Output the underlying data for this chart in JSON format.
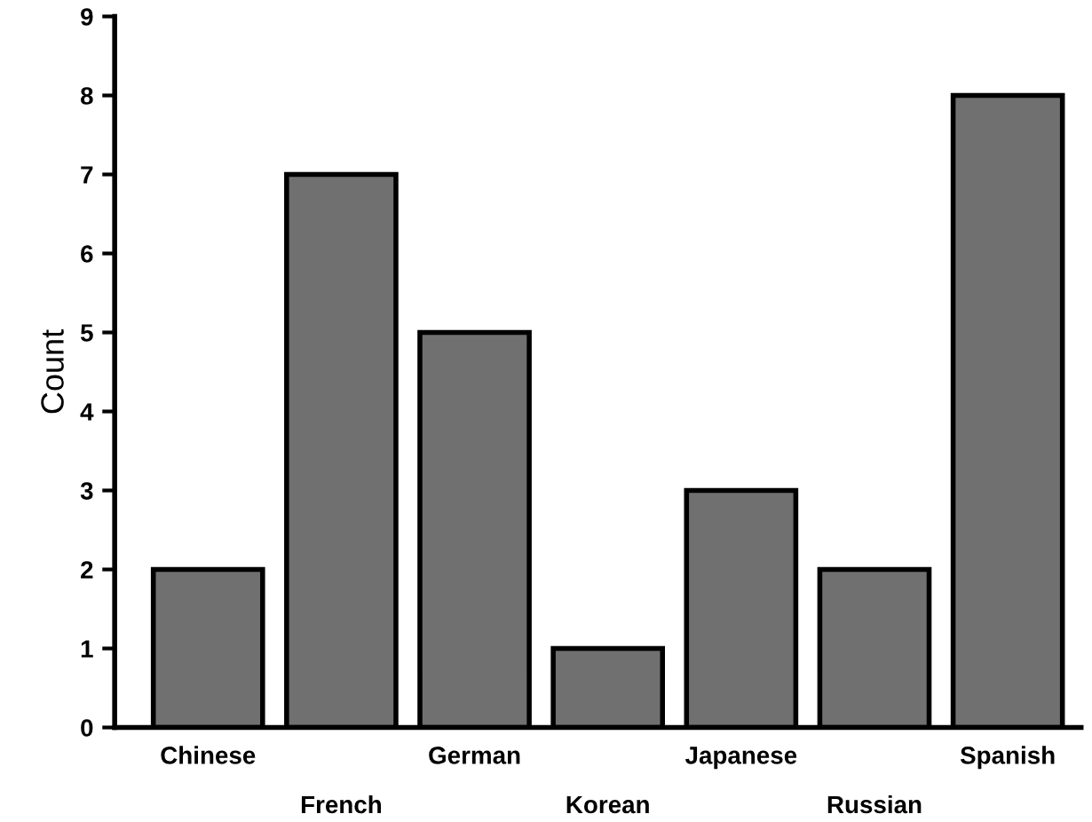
{
  "chart_data": {
    "type": "bar",
    "ylabel": "Count",
    "categories": [
      "Chinese",
      "French",
      "German",
      "Korean",
      "Japanese",
      "Russian",
      "Spanish"
    ],
    "values": [
      2,
      7,
      5,
      1,
      3,
      2,
      8
    ],
    "color": "#707070",
    "ylim": [
      0,
      9
    ],
    "yticks": [
      0,
      1,
      2,
      3,
      4,
      5,
      6,
      7,
      8,
      9
    ],
    "grid": false
  }
}
